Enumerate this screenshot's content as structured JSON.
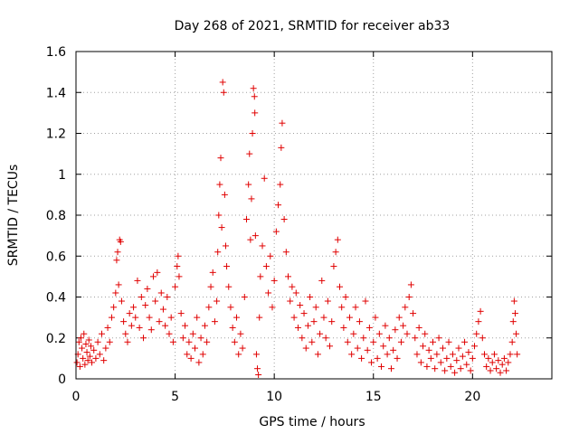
{
  "chart_data": {
    "type": "scatter",
    "title": "Day 268 of 2021, SRMTID for receiver ab33",
    "xlabel": "GPS time / hours",
    "ylabel": "SRMTID / TECUs",
    "xlim": [
      0,
      24
    ],
    "ylim": [
      0,
      1.6
    ],
    "xticks": [
      0,
      5,
      10,
      15,
      20
    ],
    "xtick_labels": [
      "0",
      "5",
      "10",
      "15",
      "20"
    ],
    "yticks": [
      0,
      0.2,
      0.4,
      0.6,
      0.8,
      1.0,
      1.2,
      1.4,
      1.6
    ],
    "ytick_labels": [
      "0",
      "0.2",
      "0.4",
      "0.6",
      "0.8",
      "1",
      "1.2",
      "1.4",
      "1.6"
    ],
    "grid": true,
    "marker": "plus",
    "marker_color": "#e00000",
    "series": [
      {
        "name": "SRMTID",
        "points": [
          [
            0.05,
            0.08
          ],
          [
            0.1,
            0.12
          ],
          [
            0.15,
            0.18
          ],
          [
            0.2,
            0.06
          ],
          [
            0.25,
            0.2
          ],
          [
            0.3,
            0.15
          ],
          [
            0.35,
            0.1
          ],
          [
            0.4,
            0.22
          ],
          [
            0.45,
            0.07
          ],
          [
            0.5,
            0.17
          ],
          [
            0.55,
            0.13
          ],
          [
            0.6,
            0.09
          ],
          [
            0.65,
            0.19
          ],
          [
            0.7,
            0.11
          ],
          [
            0.75,
            0.16
          ],
          [
            0.8,
            0.08
          ],
          [
            0.9,
            0.14
          ],
          [
            1.0,
            0.1
          ],
          [
            1.1,
            0.18
          ],
          [
            1.2,
            0.12
          ],
          [
            1.3,
            0.22
          ],
          [
            1.4,
            0.09
          ],
          [
            1.5,
            0.15
          ],
          [
            1.6,
            0.25
          ],
          [
            1.7,
            0.18
          ],
          [
            1.8,
            0.3
          ],
          [
            1.9,
            0.35
          ],
          [
            2.0,
            0.42
          ],
          [
            2.05,
            0.58
          ],
          [
            2.1,
            0.62
          ],
          [
            2.15,
            0.46
          ],
          [
            2.2,
            0.68
          ],
          [
            2.25,
            0.67
          ],
          [
            2.3,
            0.38
          ],
          [
            2.4,
            0.28
          ],
          [
            2.5,
            0.22
          ],
          [
            2.6,
            0.18
          ],
          [
            2.7,
            0.32
          ],
          [
            2.8,
            0.26
          ],
          [
            2.9,
            0.35
          ],
          [
            3.0,
            0.3
          ],
          [
            3.1,
            0.48
          ],
          [
            3.2,
            0.25
          ],
          [
            3.3,
            0.4
          ],
          [
            3.4,
            0.2
          ],
          [
            3.5,
            0.36
          ],
          [
            3.6,
            0.44
          ],
          [
            3.7,
            0.3
          ],
          [
            3.8,
            0.24
          ],
          [
            3.9,
            0.5
          ],
          [
            4.0,
            0.38
          ],
          [
            4.1,
            0.52
          ],
          [
            4.2,
            0.28
          ],
          [
            4.3,
            0.42
          ],
          [
            4.4,
            0.34
          ],
          [
            4.5,
            0.26
          ],
          [
            4.6,
            0.4
          ],
          [
            4.7,
            0.22
          ],
          [
            4.8,
            0.3
          ],
          [
            4.9,
            0.18
          ],
          [
            5.0,
            0.45
          ],
          [
            5.1,
            0.55
          ],
          [
            5.15,
            0.6
          ],
          [
            5.2,
            0.5
          ],
          [
            5.3,
            0.32
          ],
          [
            5.4,
            0.2
          ],
          [
            5.5,
            0.26
          ],
          [
            5.6,
            0.12
          ],
          [
            5.7,
            0.18
          ],
          [
            5.8,
            0.1
          ],
          [
            5.9,
            0.22
          ],
          [
            6.0,
            0.15
          ],
          [
            6.1,
            0.3
          ],
          [
            6.2,
            0.08
          ],
          [
            6.3,
            0.2
          ],
          [
            6.4,
            0.12
          ],
          [
            6.5,
            0.26
          ],
          [
            6.6,
            0.18
          ],
          [
            6.7,
            0.35
          ],
          [
            6.8,
            0.45
          ],
          [
            6.9,
            0.52
          ],
          [
            7.0,
            0.28
          ],
          [
            7.1,
            0.38
          ],
          [
            7.15,
            0.62
          ],
          [
            7.2,
            0.8
          ],
          [
            7.25,
            0.95
          ],
          [
            7.3,
            1.08
          ],
          [
            7.35,
            0.74
          ],
          [
            7.4,
            1.45
          ],
          [
            7.45,
            1.4
          ],
          [
            7.5,
            0.9
          ],
          [
            7.55,
            0.65
          ],
          [
            7.6,
            0.55
          ],
          [
            7.7,
            0.45
          ],
          [
            7.8,
            0.35
          ],
          [
            7.9,
            0.25
          ],
          [
            8.0,
            0.18
          ],
          [
            8.1,
            0.3
          ],
          [
            8.2,
            0.12
          ],
          [
            8.3,
            0.22
          ],
          [
            8.4,
            0.15
          ],
          [
            8.5,
            0.4
          ],
          [
            8.6,
            0.78
          ],
          [
            8.7,
            0.95
          ],
          [
            8.75,
            1.1
          ],
          [
            8.8,
            0.68
          ],
          [
            8.85,
            0.88
          ],
          [
            8.9,
            1.2
          ],
          [
            8.95,
            1.42
          ],
          [
            9.0,
            1.38
          ],
          [
            9.02,
            1.3
          ],
          [
            9.05,
            0.7
          ],
          [
            9.1,
            0.12
          ],
          [
            9.15,
            0.05
          ],
          [
            9.2,
            0.02
          ],
          [
            9.25,
            0.3
          ],
          [
            9.3,
            0.5
          ],
          [
            9.4,
            0.65
          ],
          [
            9.5,
            0.98
          ],
          [
            9.6,
            0.55
          ],
          [
            9.7,
            0.42
          ],
          [
            9.8,
            0.6
          ],
          [
            9.9,
            0.35
          ],
          [
            10.0,
            0.48
          ],
          [
            10.1,
            0.72
          ],
          [
            10.2,
            0.85
          ],
          [
            10.3,
            0.95
          ],
          [
            10.35,
            1.13
          ],
          [
            10.4,
            1.25
          ],
          [
            10.5,
            0.78
          ],
          [
            10.6,
            0.62
          ],
          [
            10.7,
            0.5
          ],
          [
            10.8,
            0.38
          ],
          [
            10.9,
            0.45
          ],
          [
            11.0,
            0.3
          ],
          [
            11.1,
            0.42
          ],
          [
            11.2,
            0.25
          ],
          [
            11.3,
            0.36
          ],
          [
            11.4,
            0.2
          ],
          [
            11.5,
            0.32
          ],
          [
            11.6,
            0.15
          ],
          [
            11.7,
            0.26
          ],
          [
            11.8,
            0.4
          ],
          [
            11.9,
            0.18
          ],
          [
            12.0,
            0.28
          ],
          [
            12.1,
            0.35
          ],
          [
            12.2,
            0.12
          ],
          [
            12.3,
            0.22
          ],
          [
            12.4,
            0.48
          ],
          [
            12.5,
            0.3
          ],
          [
            12.6,
            0.2
          ],
          [
            12.7,
            0.38
          ],
          [
            12.8,
            0.16
          ],
          [
            12.9,
            0.28
          ],
          [
            13.0,
            0.55
          ],
          [
            13.1,
            0.62
          ],
          [
            13.2,
            0.68
          ],
          [
            13.3,
            0.45
          ],
          [
            13.4,
            0.35
          ],
          [
            13.5,
            0.25
          ],
          [
            13.6,
            0.4
          ],
          [
            13.7,
            0.18
          ],
          [
            13.8,
            0.3
          ],
          [
            13.9,
            0.12
          ],
          [
            14.0,
            0.22
          ],
          [
            14.1,
            0.35
          ],
          [
            14.2,
            0.15
          ],
          [
            14.3,
            0.28
          ],
          [
            14.4,
            0.1
          ],
          [
            14.5,
            0.2
          ],
          [
            14.6,
            0.38
          ],
          [
            14.7,
            0.14
          ],
          [
            14.8,
            0.25
          ],
          [
            14.9,
            0.08
          ],
          [
            15.0,
            0.18
          ],
          [
            15.1,
            0.3
          ],
          [
            15.2,
            0.1
          ],
          [
            15.3,
            0.22
          ],
          [
            15.4,
            0.06
          ],
          [
            15.5,
            0.16
          ],
          [
            15.6,
            0.26
          ],
          [
            15.7,
            0.12
          ],
          [
            15.8,
            0.2
          ],
          [
            15.9,
            0.05
          ],
          [
            16.0,
            0.14
          ],
          [
            16.1,
            0.24
          ],
          [
            16.2,
            0.1
          ],
          [
            16.3,
            0.3
          ],
          [
            16.4,
            0.18
          ],
          [
            16.5,
            0.26
          ],
          [
            16.6,
            0.35
          ],
          [
            16.7,
            0.22
          ],
          [
            16.8,
            0.4
          ],
          [
            16.9,
            0.46
          ],
          [
            17.0,
            0.32
          ],
          [
            17.1,
            0.2
          ],
          [
            17.2,
            0.12
          ],
          [
            17.3,
            0.25
          ],
          [
            17.4,
            0.08
          ],
          [
            17.5,
            0.16
          ],
          [
            17.6,
            0.22
          ],
          [
            17.7,
            0.06
          ],
          [
            17.8,
            0.14
          ],
          [
            17.9,
            0.1
          ],
          [
            18.0,
            0.18
          ],
          [
            18.1,
            0.05
          ],
          [
            18.2,
            0.12
          ],
          [
            18.3,
            0.2
          ],
          [
            18.4,
            0.08
          ],
          [
            18.5,
            0.15
          ],
          [
            18.6,
            0.04
          ],
          [
            18.7,
            0.1
          ],
          [
            18.8,
            0.18
          ],
          [
            18.9,
            0.06
          ],
          [
            19.0,
            0.12
          ],
          [
            19.1,
            0.03
          ],
          [
            19.2,
            0.09
          ],
          [
            19.3,
            0.15
          ],
          [
            19.4,
            0.05
          ],
          [
            19.5,
            0.11
          ],
          [
            19.6,
            0.18
          ],
          [
            19.7,
            0.07
          ],
          [
            19.8,
            0.13
          ],
          [
            19.9,
            0.04
          ],
          [
            20.0,
            0.1
          ],
          [
            20.1,
            0.16
          ],
          [
            20.2,
            0.22
          ],
          [
            20.3,
            0.28
          ],
          [
            20.4,
            0.33
          ],
          [
            20.5,
            0.2
          ],
          [
            20.6,
            0.12
          ],
          [
            20.7,
            0.06
          ],
          [
            20.8,
            0.1
          ],
          [
            20.9,
            0.04
          ],
          [
            21.0,
            0.08
          ],
          [
            21.1,
            0.12
          ],
          [
            21.2,
            0.05
          ],
          [
            21.3,
            0.09
          ],
          [
            21.4,
            0.03
          ],
          [
            21.5,
            0.07
          ],
          [
            21.6,
            0.1
          ],
          [
            21.7,
            0.04
          ],
          [
            21.8,
            0.08
          ],
          [
            21.9,
            0.12
          ],
          [
            22.0,
            0.18
          ],
          [
            22.05,
            0.28
          ],
          [
            22.1,
            0.38
          ],
          [
            22.15,
            0.32
          ],
          [
            22.2,
            0.22
          ],
          [
            22.25,
            0.12
          ]
        ]
      }
    ]
  }
}
